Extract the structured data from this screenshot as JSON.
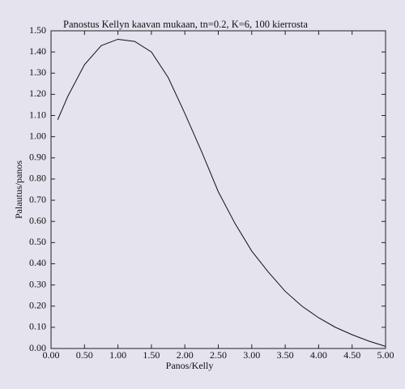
{
  "chart_data": {
    "type": "line",
    "title": "Panostus Kellyn kaavan mukaan, tn=0.2, K=6, 100 kierrosta",
    "x_label": "Panos/Kelly",
    "y_label": "Palautus/panos",
    "x": [
      0.1,
      0.25,
      0.5,
      0.75,
      1.0,
      1.25,
      1.5,
      1.75,
      2.0,
      2.25,
      2.5,
      2.75,
      3.0,
      3.25,
      3.5,
      3.75,
      4.0,
      4.25,
      4.5,
      4.75,
      5.0
    ],
    "series": [
      {
        "color": "#111111",
        "values": [
          1.08,
          1.19,
          1.34,
          1.43,
          1.46,
          1.45,
          1.4,
          1.28,
          1.11,
          0.93,
          0.74,
          0.59,
          0.46,
          0.36,
          0.27,
          0.2,
          0.145,
          0.1,
          0.065,
          0.035,
          0.01
        ]
      }
    ],
    "xlim": [
      0,
      5
    ],
    "ylim": [
      0,
      1.5
    ],
    "xticks": [
      {
        "value": 0,
        "label": "0.00"
      },
      {
        "value": 0.5,
        "label": "0.50"
      },
      {
        "value": 1,
        "label": "1.00"
      },
      {
        "value": 1.5,
        "label": "1.50"
      },
      {
        "value": 2,
        "label": "2.00"
      },
      {
        "value": 2.5,
        "label": "2.50"
      },
      {
        "value": 3,
        "label": "3.00"
      },
      {
        "value": 3.5,
        "label": "3.50"
      },
      {
        "value": 4,
        "label": "4.00"
      },
      {
        "value": 4.5,
        "label": "4.50"
      },
      {
        "value": 5,
        "label": "5.00"
      }
    ],
    "yticks": [
      {
        "value": 0,
        "label": "0.00"
      },
      {
        "value": 0.1,
        "label": "0.10"
      },
      {
        "value": 0.2,
        "label": "0.20"
      },
      {
        "value": 0.3,
        "label": "0.30"
      },
      {
        "value": 0.4,
        "label": "0.40"
      },
      {
        "value": 0.5,
        "label": "0.50"
      },
      {
        "value": 0.6,
        "label": "0.60"
      },
      {
        "value": 0.7,
        "label": "0.70"
      },
      {
        "value": 0.8,
        "label": "0.80"
      },
      {
        "value": 0.9,
        "label": "0.90"
      },
      {
        "value": 1.0,
        "label": "1.00"
      },
      {
        "value": 1.1,
        "label": "1.10"
      },
      {
        "value": 1.2,
        "label": "1.20"
      },
      {
        "value": 1.3,
        "label": "1.30"
      },
      {
        "value": 1.4,
        "label": "1.40"
      },
      {
        "value": 1.5,
        "label": "1.50"
      }
    ],
    "grid": false
  }
}
